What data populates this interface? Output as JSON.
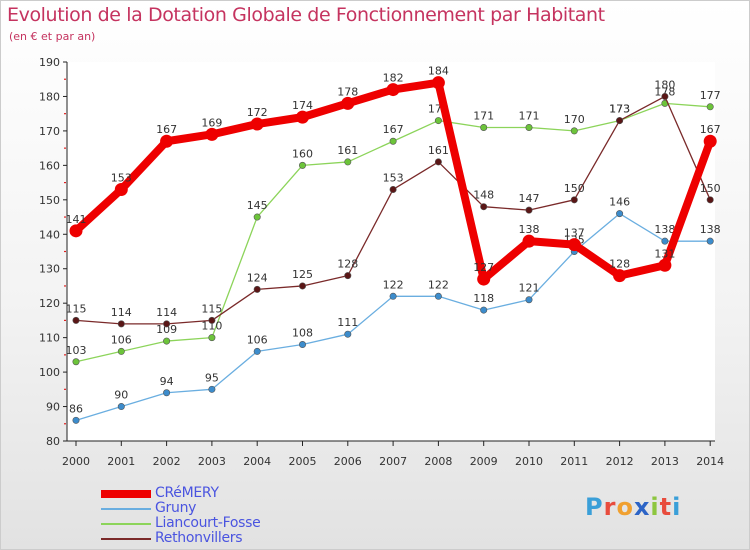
{
  "header": {
    "title": "Evolution de la Dotation Globale de Fonctionnement par Habitant",
    "subtitle": "(en € et par an)"
  },
  "brand": {
    "letters": [
      "P",
      "r",
      "o",
      "x",
      "i",
      "t",
      "i"
    ],
    "colors": [
      "#3a9fd8",
      "#e84c3d",
      "#f0a030",
      "#2c64c6",
      "#8dc63f",
      "#e84c3d",
      "#3a9fd8"
    ]
  },
  "chart_data": {
    "type": "line",
    "title": "Evolution de la Dotation Globale de Fonctionnement par Habitant",
    "ylabel": "(en € et par an)",
    "xlabel": "",
    "x": [
      "2000",
      "2001",
      "2002",
      "2003",
      "2004",
      "2005",
      "2006",
      "2007",
      "2008",
      "2009",
      "2010",
      "2011",
      "2012",
      "2013",
      "2014"
    ],
    "ylim": [
      80,
      190
    ],
    "yticks": [
      80,
      90,
      100,
      110,
      120,
      130,
      140,
      150,
      160,
      170,
      180,
      190
    ],
    "grid": false,
    "legend_position": "bottom-left",
    "series": [
      {
        "name": "Liancourt-Fosse",
        "color": "#8cd45a",
        "marker_color": "#6cc43a",
        "values": [
          103,
          106,
          109,
          110,
          145,
          160,
          161,
          167,
          173,
          171,
          171,
          170,
          173,
          178,
          177
        ],
        "labels": [
          "103",
          "106",
          "109",
          "110",
          "145",
          "160",
          "161",
          "167",
          "173",
          "171",
          "171",
          "170",
          "173",
          "178",
          "177"
        ]
      },
      {
        "name": "Gruny",
        "color": "#6aaee0",
        "marker_color": "#3c8ccc",
        "values": [
          86,
          90,
          94,
          95,
          106,
          108,
          111,
          122,
          122,
          118,
          121,
          135,
          146,
          138,
          138
        ],
        "labels": [
          "86",
          "90",
          "94",
          "95",
          "106",
          "108",
          "111",
          "122",
          "122",
          "118",
          "121",
          "135",
          "146",
          "138",
          "138"
        ]
      },
      {
        "name": "Rethonvillers",
        "color": "#7a2a2a",
        "marker_color": "#5a1616",
        "values": [
          115,
          114,
          114,
          115,
          124,
          125,
          128,
          153,
          161,
          148,
          147,
          150,
          173,
          180,
          150
        ],
        "labels": [
          "115",
          "114",
          "114",
          "115",
          "124",
          "125",
          "128",
          "153",
          "161",
          "148",
          "147",
          "150",
          "173",
          "180",
          "150"
        ]
      },
      {
        "name": "CRéMERY",
        "color": "#ee0000",
        "marker_color": "#ee0000",
        "values": [
          141,
          153,
          167,
          169,
          172,
          174,
          178,
          182,
          184,
          127,
          138,
          137,
          128,
          131,
          167
        ],
        "labels": [
          "141",
          "153",
          "167",
          "169",
          "172",
          "174",
          "178",
          "182",
          "184",
          "127",
          "138",
          "137",
          "128",
          "131",
          "167"
        ]
      }
    ],
    "legend": [
      "CRéMERY",
      "Gruny",
      "Liancourt-Fosse",
      "Rethonvillers"
    ]
  }
}
